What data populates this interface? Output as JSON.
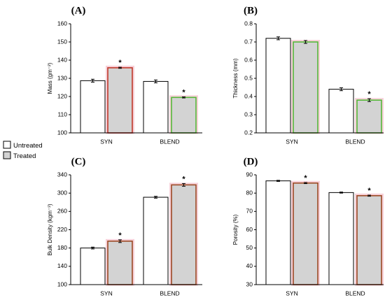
{
  "legend": {
    "untreated": {
      "label": "Untreated",
      "fill": "#ffffff"
    },
    "treated": {
      "label": "Treated",
      "fill": "#d3d3d3"
    }
  },
  "colors": {
    "axis": "#000000",
    "treated_fill": "#d3d3d3",
    "red_border": "#c0392b",
    "green_border": "#55b83a",
    "brown_border": "#9c4a25",
    "pink_glow": "#f5c6cf"
  },
  "chart_data": [
    {
      "panel": "(A)",
      "type": "bar",
      "ylabel": "Mass (gm⁻²)",
      "ylim": [
        100,
        160
      ],
      "yticks": [
        100,
        110,
        120,
        130,
        140,
        150,
        160
      ],
      "categories": [
        "SYN",
        "BLEND"
      ],
      "series": [
        {
          "name": "Untreated",
          "values": [
            128.7,
            128.3
          ],
          "errors": [
            0.8,
            0.8
          ]
        },
        {
          "name": "Treated",
          "values": [
            135.8,
            119.5
          ],
          "errors": [
            0.3,
            0.3
          ],
          "borders": [
            "red",
            "green"
          ],
          "significant": [
            true,
            true
          ]
        }
      ]
    },
    {
      "panel": "(B)",
      "type": "bar",
      "ylabel": "Thickness (mm)",
      "ylim": [
        0.2,
        0.8
      ],
      "yticks": [
        "0.2",
        "0.3",
        "0.4",
        "0.5",
        "0.6",
        "0.7",
        "0.8"
      ],
      "categories": [
        "SYN",
        "BLEND"
      ],
      "series": [
        {
          "name": "Untreated",
          "values": [
            0.72,
            0.44
          ],
          "errors": [
            0.008,
            0.008
          ]
        },
        {
          "name": "Treated",
          "values": [
            0.7,
            0.38
          ],
          "errors": [
            0.008,
            0.008
          ],
          "borders": [
            "green",
            "green"
          ],
          "significant": [
            false,
            true
          ]
        }
      ]
    },
    {
      "panel": "(C)",
      "type": "bar",
      "ylabel": "Bulk Density (kgm⁻³)",
      "ylim": [
        100,
        340
      ],
      "yticks": [
        100,
        140,
        180,
        220,
        260,
        300,
        340
      ],
      "categories": [
        "SYN",
        "BLEND"
      ],
      "series": [
        {
          "name": "Untreated",
          "values": [
            180,
            291
          ],
          "errors": [
            2,
            2
          ]
        },
        {
          "name": "Treated",
          "values": [
            195,
            318
          ],
          "errors": [
            3,
            3
          ],
          "borders": [
            "brown",
            "brown"
          ],
          "significant": [
            true,
            true
          ]
        }
      ]
    },
    {
      "panel": "(D)",
      "type": "bar",
      "ylabel": "Porosity (%)",
      "ylim": [
        30,
        90
      ],
      "yticks": [
        30,
        40,
        50,
        60,
        70,
        80,
        90
      ],
      "categories": [
        "SYN",
        "BLEND"
      ],
      "series": [
        {
          "name": "Untreated",
          "values": [
            86.7,
            80.3
          ],
          "errors": [
            0.3,
            0.3
          ]
        },
        {
          "name": "Treated",
          "values": [
            85.5,
            78.6
          ],
          "errors": [
            0.3,
            0.3
          ],
          "borders": [
            "brown",
            "brown"
          ],
          "significant": [
            true,
            true
          ]
        }
      ]
    }
  ]
}
